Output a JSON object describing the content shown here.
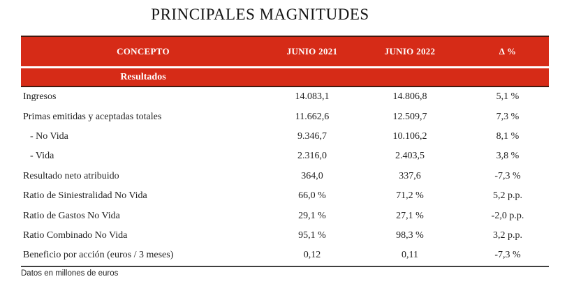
{
  "title": "PRINCIPALES MAGNITUDES",
  "footnote": "Datos en millones de euros",
  "colors": {
    "header_red": "#d62b17",
    "band_rule_dark": "#44180e",
    "bottom_rule": "#3f3f3f",
    "header_text": "#ffffff",
    "body_text": "#1f1f1f"
  },
  "table": {
    "columns": [
      "CONCEPTO",
      "JUNIO 2021",
      "JUNIO 2022",
      "Δ %"
    ],
    "section": "Resultados",
    "rows": [
      {
        "concepto": "Ingresos",
        "jun2021": "14.083,1",
        "jun2022": "14.806,8",
        "delta": "5,1 %"
      },
      {
        "concepto": "Primas emitidas y aceptadas totales",
        "jun2021": "11.662,6",
        "jun2022": "12.509,7",
        "delta": "7,3 %"
      },
      {
        "concepto": "- No Vida",
        "jun2021": "9.346,7",
        "jun2022": "10.106,2",
        "delta": "8,1 %"
      },
      {
        "concepto": "- Vida",
        "jun2021": "2.316,0",
        "jun2022": "2.403,5",
        "delta": "3,8 %"
      },
      {
        "concepto": "Resultado neto atribuido",
        "jun2021": "364,0",
        "jun2022": "337,6",
        "delta": "-7,3 %"
      },
      {
        "concepto": "Ratio de Siniestralidad No Vida",
        "jun2021": "66,0 %",
        "jun2022": "71,2 %",
        "delta": "5,2 p.p."
      },
      {
        "concepto": "Ratio de Gastos No Vida",
        "jun2021": "29,1 %",
        "jun2022": "27,1 %",
        "delta": "-2,0 p.p."
      },
      {
        "concepto": "Ratio Combinado No Vida",
        "jun2021": "95,1 %",
        "jun2022": "98,3 %",
        "delta": "3,2 p.p."
      },
      {
        "concepto": "Beneficio por acción (euros / 3 meses)",
        "jun2021": "0,12",
        "jun2022": "0,11",
        "delta": "-7,3 %"
      }
    ]
  }
}
